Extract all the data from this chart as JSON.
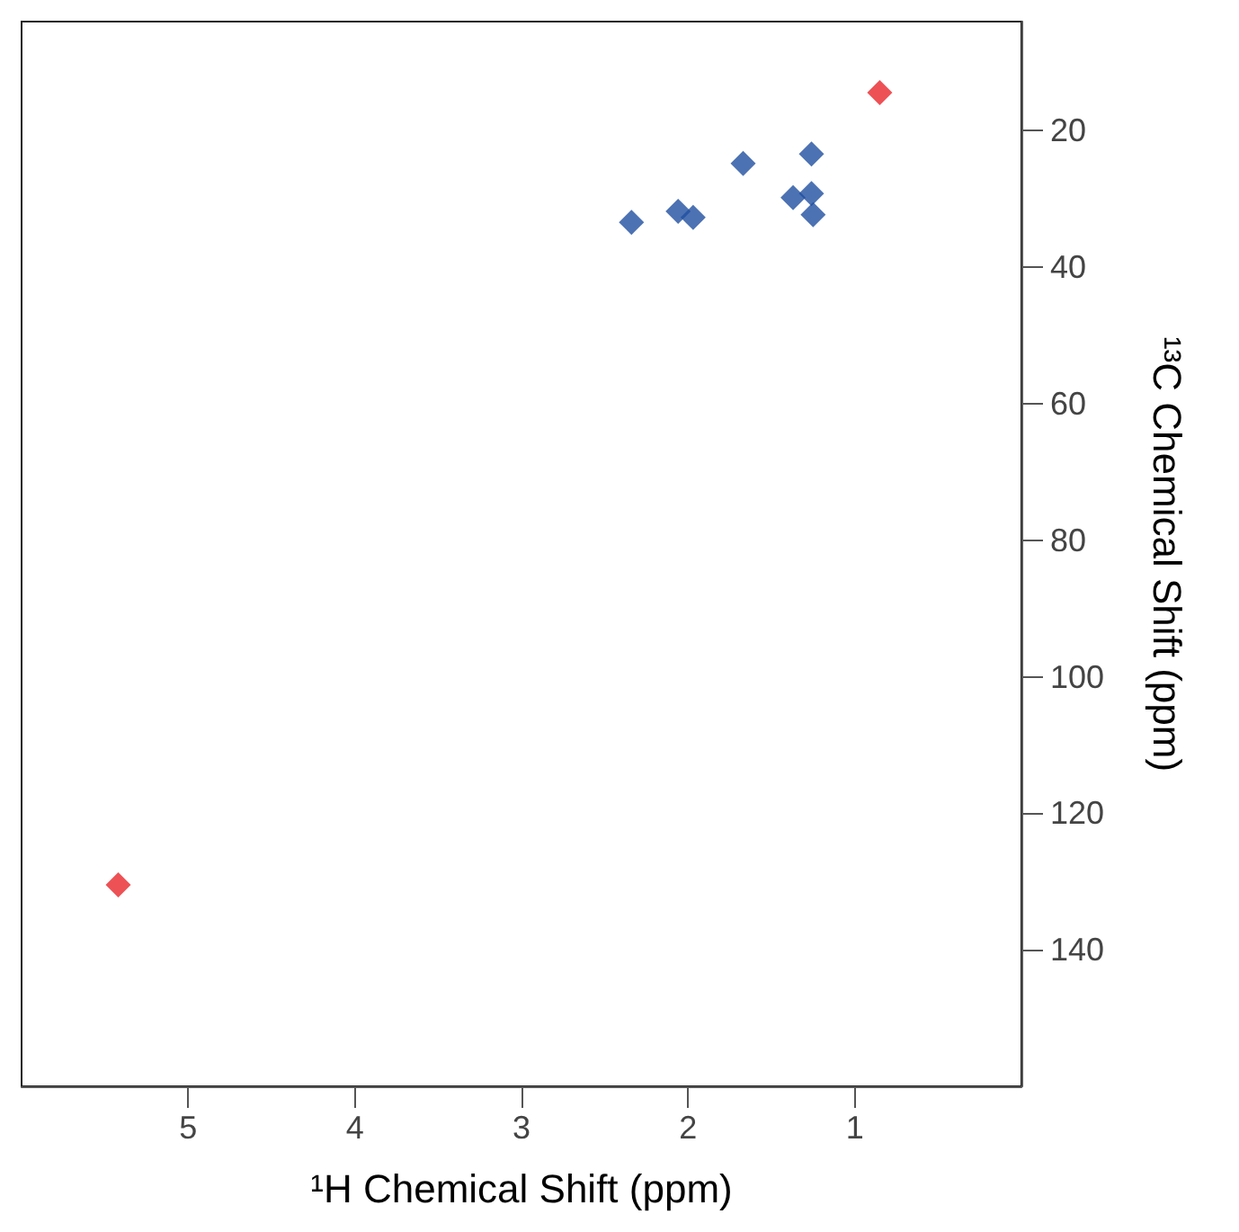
{
  "chart_data": {
    "type": "scatter",
    "xlabel": "¹H Chemical Shift (ppm)",
    "ylabel": "¹³C Chemical Shift (ppm)",
    "xlim": [
      6,
      0
    ],
    "xticks": [
      5,
      4,
      3,
      2,
      1
    ],
    "ylim": [
      160,
      4
    ],
    "yticks": [
      20,
      40,
      60,
      80,
      100,
      120,
      140
    ],
    "grid": false,
    "marker": "diamond",
    "series": [
      {
        "color": "#e8262a",
        "x": [
          0.85,
          5.42
        ],
        "values": [
          14.4,
          130.5
        ]
      },
      {
        "color": "#1f4fa0",
        "x": [
          1.26,
          1.67,
          1.26,
          1.37,
          1.25,
          2.06,
          1.97,
          2.34
        ],
        "values": [
          23.4,
          24.8,
          29.2,
          29.8,
          32.3,
          31.8,
          32.7,
          33.4
        ]
      }
    ]
  }
}
